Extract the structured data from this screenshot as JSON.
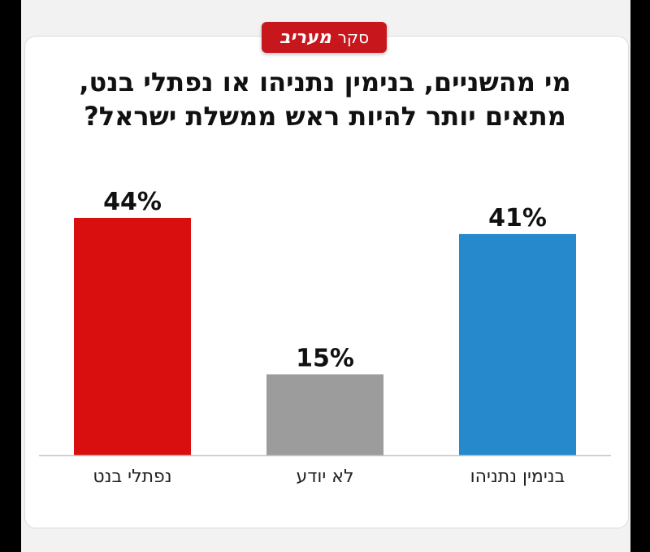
{
  "badge": {
    "label": "סקר",
    "brand": "מעריב"
  },
  "chart_data": {
    "type": "bar",
    "title_lines": [
      "מי מהשניים, בנימין נתניהו או נפתלי בנט,",
      "מתאים יותר להיות ראש ממשלת ישראל?"
    ],
    "categories": [
      "נפתלי בנט",
      "לא יודע",
      "בנימין נתניהו"
    ],
    "values": [
      44,
      15,
      41
    ],
    "value_labels": [
      "44%",
      "15%",
      "41%"
    ],
    "colors": [
      "#d90f0f",
      "#9c9c9c",
      "#2589cc"
    ],
    "ylim": [
      0,
      44
    ],
    "grid": false,
    "legend": "none"
  }
}
